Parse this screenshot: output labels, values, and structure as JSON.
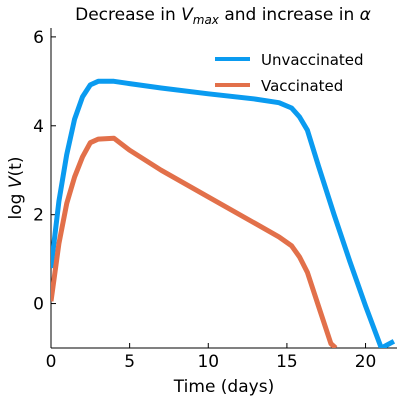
{
  "chart_data": {
    "type": "line",
    "title": "Decrease in V_max and increase in α",
    "title_parts": {
      "before": "Decrease in ",
      "var": "V",
      "sub": "max",
      "after": " and increase in ",
      "greek": "α"
    },
    "xlabel": "Time (days)",
    "ylabel_parts": {
      "prefix": "log ",
      "var": "V",
      "arg": "(t)"
    },
    "xlim": [
      0,
      22
    ],
    "ylim": [
      -1,
      6.2
    ],
    "xticks": [
      0,
      5,
      10,
      15,
      20
    ],
    "yticks": [
      0,
      2,
      4,
      6
    ],
    "legend_position": "top-right",
    "series": [
      {
        "name": "Unvaccinated",
        "color": "#0a9bf0",
        "points": [
          [
            0,
            0.8
          ],
          [
            0.5,
            2.3
          ],
          [
            1,
            3.35
          ],
          [
            1.5,
            4.15
          ],
          [
            2,
            4.65
          ],
          [
            2.5,
            4.92
          ],
          [
            3,
            5.0
          ],
          [
            4,
            5.0
          ],
          [
            5,
            4.95
          ],
          [
            7,
            4.85
          ],
          [
            10,
            4.72
          ],
          [
            13,
            4.6
          ],
          [
            14.5,
            4.52
          ],
          [
            15.3,
            4.4
          ],
          [
            15.8,
            4.2
          ],
          [
            16.3,
            3.9
          ],
          [
            17,
            3.1
          ],
          [
            18,
            2.0
          ],
          [
            19,
            0.95
          ],
          [
            20,
            -0.05
          ],
          [
            21,
            -1.0
          ],
          [
            21.8,
            -0.85
          ]
        ]
      },
      {
        "name": "Vaccinated",
        "color": "#e2704a",
        "points": [
          [
            0,
            0.05
          ],
          [
            0.5,
            1.35
          ],
          [
            1,
            2.25
          ],
          [
            1.5,
            2.85
          ],
          [
            2,
            3.3
          ],
          [
            2.5,
            3.62
          ],
          [
            3,
            3.7
          ],
          [
            4,
            3.72
          ],
          [
            5,
            3.45
          ],
          [
            7,
            3.0
          ],
          [
            10,
            2.4
          ],
          [
            13,
            1.8
          ],
          [
            14.5,
            1.5
          ],
          [
            15.3,
            1.3
          ],
          [
            15.8,
            1.05
          ],
          [
            16.3,
            0.7
          ],
          [
            17,
            -0.05
          ],
          [
            17.8,
            -0.9
          ],
          [
            18.1,
            -1.0
          ]
        ]
      }
    ]
  }
}
